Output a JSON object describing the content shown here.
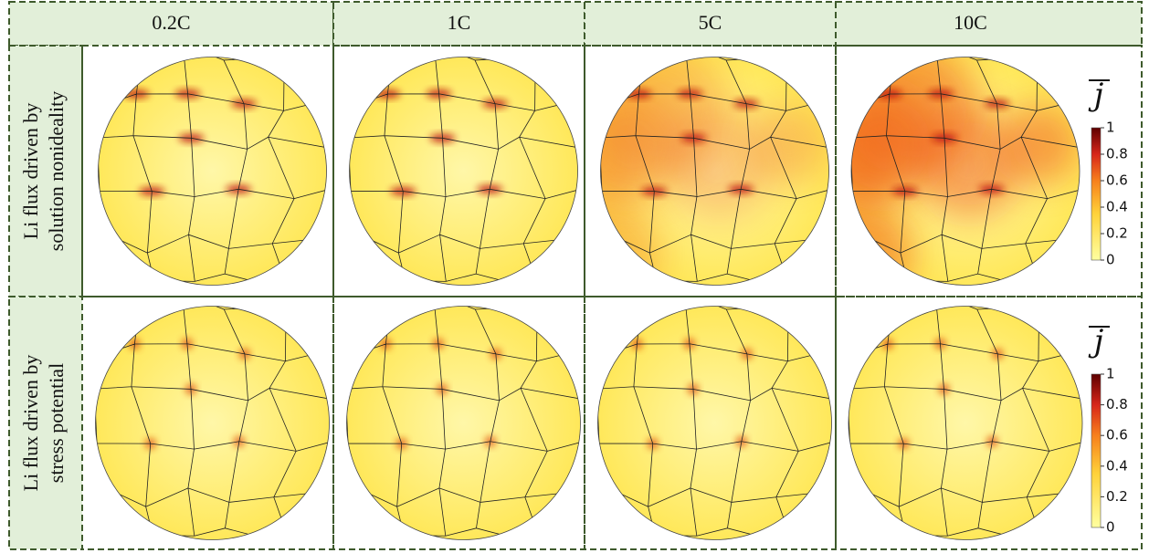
{
  "columns": [
    "0.2C",
    "1C",
    "5C",
    "10C"
  ],
  "rows": [
    {
      "label": [
        "Li flux driven by",
        "solution nonideality"
      ],
      "colorbar": {
        "symbol": "j",
        "ticks": [
          0,
          0.2,
          0.4,
          0.6,
          0.8,
          1
        ]
      }
    },
    {
      "label": [
        "Li flux driven by",
        "stress potential"
      ],
      "colorbar": {
        "symbol": "j",
        "ticks": [
          0,
          0.2,
          0.4,
          0.6,
          0.8,
          1
        ]
      }
    }
  ]
}
